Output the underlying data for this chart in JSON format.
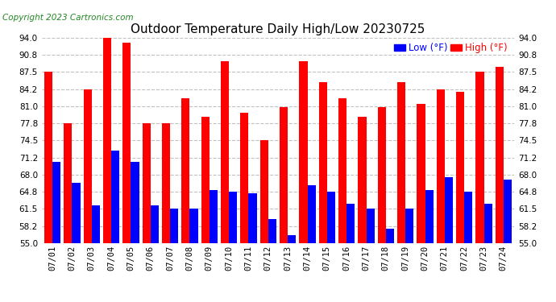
{
  "title": "Outdoor Temperature Daily High/Low 20230725",
  "copyright": "Copyright 2023 Cartronics.com",
  "legend_low": "Low",
  "legend_high": "High",
  "legend_unit": "(°F)",
  "ylim": [
    55.0,
    94.0
  ],
  "yticks": [
    55.0,
    58.2,
    61.5,
    64.8,
    68.0,
    71.2,
    74.5,
    77.8,
    81.0,
    84.2,
    87.5,
    90.8,
    94.0
  ],
  "categories": [
    "07/01",
    "07/02",
    "07/03",
    "07/04",
    "07/05",
    "07/06",
    "07/07",
    "07/08",
    "07/09",
    "07/10",
    "07/11",
    "07/12",
    "07/13",
    "07/14",
    "07/15",
    "07/16",
    "07/17",
    "07/18",
    "07/19",
    "07/20",
    "07/21",
    "07/22",
    "07/23",
    "07/24"
  ],
  "high": [
    87.5,
    77.8,
    84.2,
    94.0,
    93.0,
    77.8,
    77.8,
    82.5,
    79.0,
    89.5,
    79.8,
    74.5,
    80.8,
    89.5,
    85.5,
    82.5,
    79.0,
    80.8,
    85.5,
    81.5,
    84.2,
    83.8,
    87.5,
    88.5
  ],
  "low": [
    70.5,
    66.5,
    62.2,
    72.5,
    70.5,
    62.2,
    61.5,
    61.5,
    65.0,
    64.8,
    64.5,
    59.5,
    56.5,
    66.0,
    64.8,
    62.5,
    61.5,
    57.8,
    61.5,
    65.0,
    67.5,
    64.8,
    62.5,
    67.0
  ],
  "high_color": "#ff0000",
  "low_color": "#0000ff",
  "background_color": "#ffffff",
  "grid_color": "#bbbbbb",
  "title_fontsize": 11,
  "tick_fontsize": 7.5,
  "legend_fontsize": 8.5,
  "copyright_fontsize": 7.5
}
